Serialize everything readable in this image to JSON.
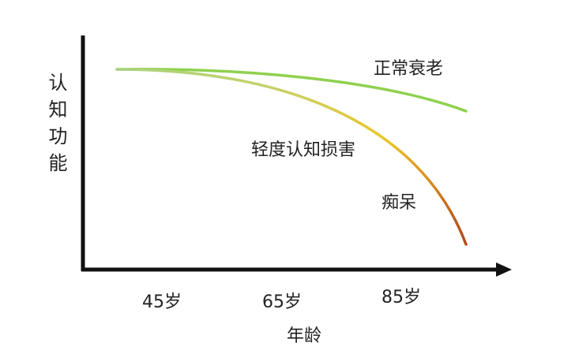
{
  "y_axis_label": "认知功能",
  "x_axis_label": "年龄",
  "x_ticks": [
    "45岁",
    "65岁",
    "85岁"
  ],
  "labels": [
    "正常衰老",
    "轻度认知损害",
    "痴呆"
  ]
}
